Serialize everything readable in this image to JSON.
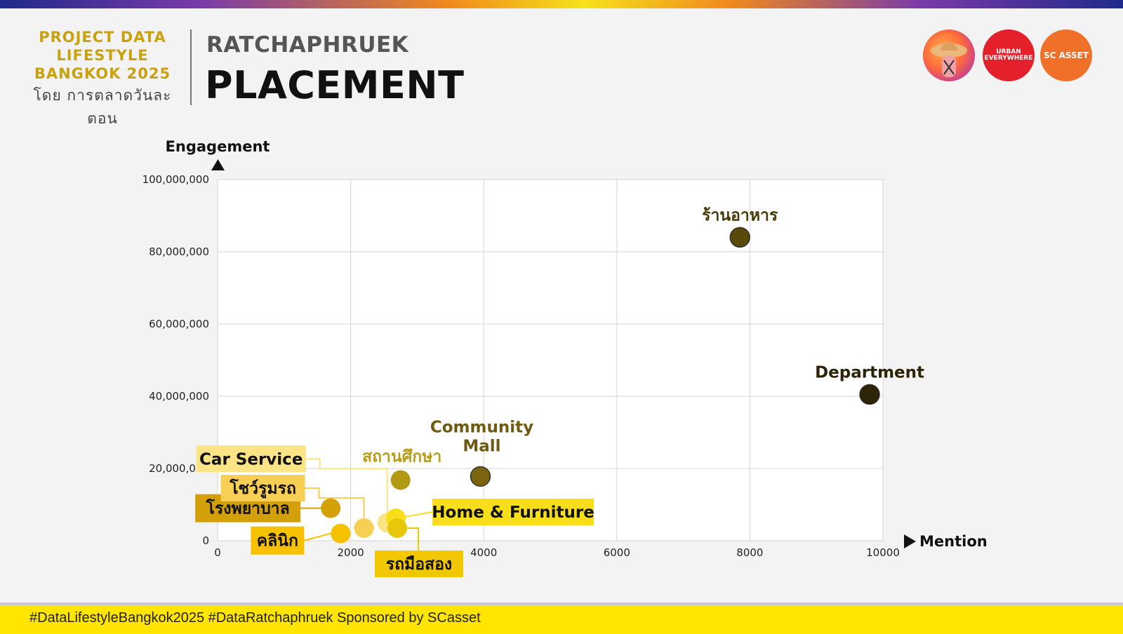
{
  "header": {
    "brand_lines": [
      "PROJECT DATA",
      "LIFESTYLE",
      "BANGKOK 2025"
    ],
    "brand_sub": "โดย การตลาดวันละตอน",
    "subtitle": "RATCHAPHRUEK",
    "title": "PLACEMENT"
  },
  "logos": {
    "logo1_icon": "sun-hat-person-icon",
    "logo2_text": "URBAN EVERYWHERE",
    "logo3_text": "SC ASSET"
  },
  "footer": {
    "text": "#DataLifestyleBangkok2025 #DataRatchaphruek Sponsored by SCasset"
  },
  "chart_data": {
    "type": "scatter",
    "xlabel": "Mention",
    "ylabel": "Engagement",
    "xlim": [
      0,
      10000
    ],
    "ylim": [
      0,
      100000000
    ],
    "x_ticks": [
      0,
      2000,
      4000,
      6000,
      8000,
      10000
    ],
    "x_tick_labels": [
      "0",
      "2000",
      "4000",
      "6000",
      "8000",
      "10000"
    ],
    "y_ticks": [
      0,
      20000000,
      40000000,
      60000000,
      80000000,
      100000000
    ],
    "y_tick_labels": [
      "0",
      "20,000,000",
      "40,000,000",
      "60,000,000",
      "80,000,000",
      "100,000,000"
    ],
    "grid": true,
    "points": [
      {
        "label": "ร้านอาหาร",
        "x": 7850,
        "y": 84000000,
        "color": "#5a4a0a"
      },
      {
        "label": "Department",
        "x": 9800,
        "y": 40500000,
        "color": "#2e2508"
      },
      {
        "label": "Community Mall",
        "x": 3950,
        "y": 17800000,
        "color": "#7a6410"
      },
      {
        "label": "สถานศึกษา",
        "x": 2750,
        "y": 16800000,
        "color": "#b39a16"
      },
      {
        "label": "โรงพยาบาล",
        "x": 1700,
        "y": 9000000,
        "color": "#d4a00a"
      },
      {
        "label": "คลินิก",
        "x": 1850,
        "y": 2000000,
        "color": "#f6c200"
      },
      {
        "label": "โชว์รูมรถ",
        "x": 2200,
        "y": 3500000,
        "color": "#f7cf54"
      },
      {
        "label": "Car Service",
        "x": 2550,
        "y": 5000000,
        "color": "#fbe486"
      },
      {
        "label": "Home & Furniture",
        "x": 2680,
        "y": 6200000,
        "color": "#f8de1a"
      },
      {
        "label": "รถมือสอง",
        "x": 2700,
        "y": 3500000,
        "color": "#e8c60a"
      }
    ]
  }
}
